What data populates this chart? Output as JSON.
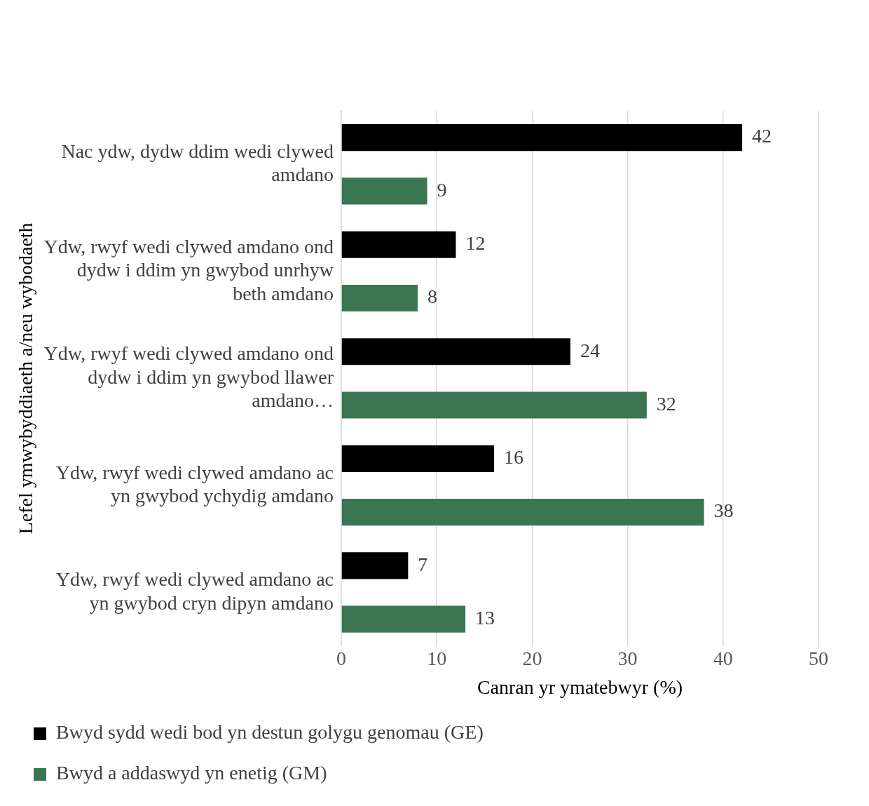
{
  "chart_data": {
    "type": "bar",
    "orientation": "horizontal",
    "xlabel": "Canran yr ymatebwyr (%)",
    "ylabel": "Lefel ymwybyddiaeth a/neu wybodaeth",
    "categories": [
      "Nac ydw, dydw ddim wedi clywed amdano",
      "Ydw, rwyf wedi clywed amdano ond dydw i ddim yn gwybod unrhyw beth amdano",
      "Ydw, rwyf wedi clywed amdano ond dydw i ddim yn gwybod llawer amdano…",
      "Ydw, rwyf wedi clywed amdano ac yn gwybod ychydig amdano",
      "Ydw, rwyf wedi clywed amdano ac yn gwybod cryn dipyn amdano"
    ],
    "series": [
      {
        "name": "Bwyd sydd wedi bod yn destun golygu genomau (GE)",
        "color": "#000000",
        "values": [
          42,
          12,
          24,
          16,
          7
        ]
      },
      {
        "name": "Bwyd a addaswyd yn enetig (GM)",
        "color": "#3a7652",
        "values": [
          9,
          8,
          32,
          38,
          13
        ]
      }
    ],
    "xlim": [
      0,
      50
    ],
    "xticks": [
      0,
      10,
      20,
      30,
      40,
      50
    ],
    "grid": "x",
    "legend": "bottom",
    "data_labels": true
  }
}
